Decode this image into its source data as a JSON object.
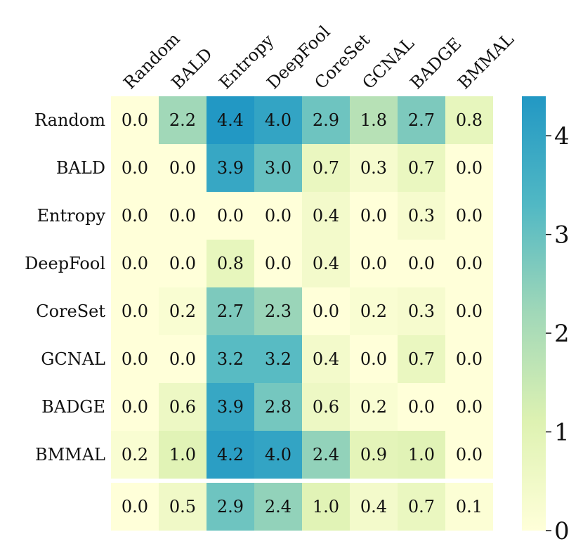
{
  "chart_data": {
    "type": "heatmap",
    "columns": [
      "Random",
      "BALD",
      "Entropy",
      "DeepFool",
      "CoreSet",
      "GCNAL",
      "BADGE",
      "BMMAL"
    ],
    "rows": [
      "Random",
      "BALD",
      "Entropy",
      "DeepFool",
      "CoreSet",
      "GCNAL",
      "BADGE",
      "BMMAL"
    ],
    "values": [
      [
        0.0,
        2.2,
        4.4,
        4.0,
        2.9,
        1.8,
        2.7,
        0.8
      ],
      [
        0.0,
        0.0,
        3.9,
        3.0,
        0.7,
        0.3,
        0.7,
        0.0
      ],
      [
        0.0,
        0.0,
        0.0,
        0.0,
        0.4,
        0.0,
        0.3,
        0.0
      ],
      [
        0.0,
        0.0,
        0.8,
        0.0,
        0.4,
        0.0,
        0.0,
        0.0
      ],
      [
        0.0,
        0.2,
        2.7,
        2.3,
        0.0,
        0.2,
        0.3,
        0.0
      ],
      [
        0.0,
        0.0,
        3.2,
        3.2,
        0.4,
        0.0,
        0.7,
        0.0
      ],
      [
        0.0,
        0.6,
        3.9,
        2.8,
        0.6,
        0.2,
        0.0,
        0.0
      ],
      [
        0.2,
        1.0,
        4.2,
        4.0,
        2.4,
        0.9,
        1.0,
        0.0
      ]
    ],
    "summary_row": [
      0.0,
      0.5,
      2.9,
      2.4,
      1.0,
      0.4,
      0.7,
      0.1
    ],
    "colorbar": {
      "min": 0,
      "max": 4.4,
      "ticks": [
        "0",
        "1",
        "2",
        "3",
        "4"
      ],
      "colormap": "YlGnBu"
    }
  }
}
